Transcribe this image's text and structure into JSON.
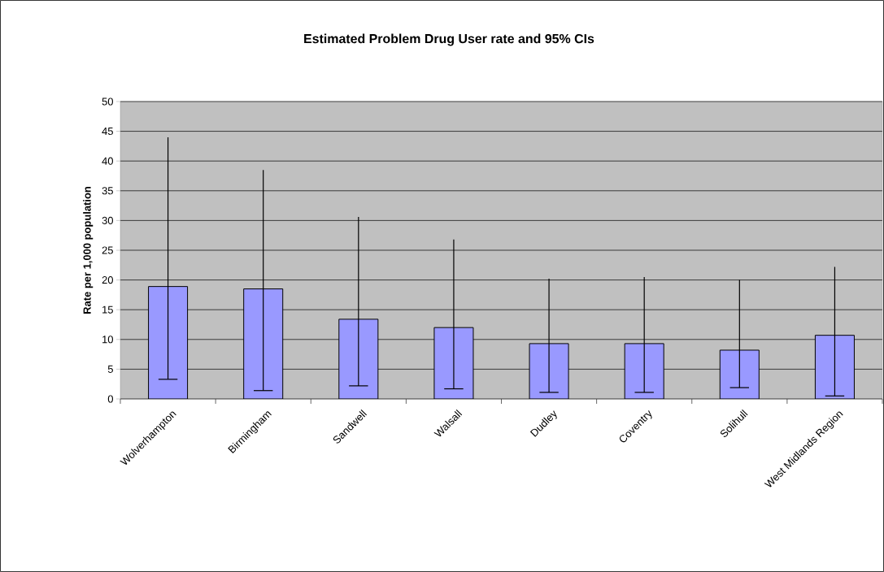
{
  "chart_data": {
    "type": "bar",
    "title": "Estimated Problem Drug User rate and 95% CIs",
    "ylabel": "Rate per 1,000 population",
    "categories": [
      "Wolverhampton",
      "Birmingham",
      "Sandwell",
      "Walsall",
      "Dudley",
      "Coventry",
      "Solihull",
      "West Midlands Region"
    ],
    "values": [
      18.9,
      18.5,
      13.4,
      12.0,
      9.3,
      9.3,
      8.2,
      10.7
    ],
    "errors": [
      [
        3.3,
        44.0
      ],
      [
        1.4,
        38.5
      ],
      [
        2.2,
        30.6
      ],
      [
        1.7,
        26.8
      ],
      [
        1.1,
        20.2
      ],
      [
        1.1,
        20.5
      ],
      [
        1.9,
        20.0
      ],
      [
        0.5,
        22.2
      ]
    ],
    "color": "#9999ff",
    "ylim": [
      0,
      50
    ],
    "yticks": [
      0,
      5,
      10,
      15,
      20,
      25,
      30,
      35,
      40,
      45,
      50
    ],
    "grid": "y"
  }
}
